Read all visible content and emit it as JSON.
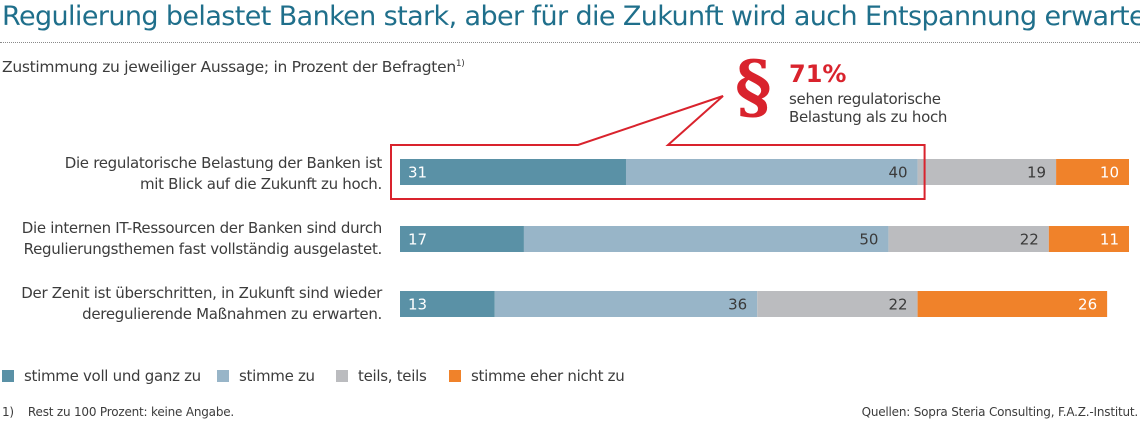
{
  "chart_data": {
    "type": "bar",
    "orientation": "horizontal",
    "stacked": true,
    "title": "Regulierung belastet Banken stark, aber für die Zukunft wird auch Entspannung erwartet",
    "subtitle": "Zustimmung zu jeweiliger Aussage; in Prozent der Befragten",
    "subtitle_footnote_mark": "1)",
    "xlabel": "",
    "ylabel": "",
    "xlim": [
      0,
      100
    ],
    "grid": false,
    "legend_position": "bottom-left",
    "categories": [
      {
        "line1": "Die regulatorische Belastung der Banken ist",
        "line2": "mit Blick auf die Zukunft zu hoch."
      },
      {
        "line1": "Die internen IT-Ressourcen der Banken sind durch",
        "line2": "Regulierungsthemen fast vollständig ausgelastet."
      },
      {
        "line1": "Der Zenit ist überschritten, in Zukunft sind wieder",
        "line2": "deregulierende Maßnahmen zu erwarten."
      }
    ],
    "series": [
      {
        "name": "stimme voll und ganz zu",
        "color": "#5a91a6",
        "label_color": "#ffffff",
        "values": [
          31,
          17,
          13
        ]
      },
      {
        "name": "stimme zu",
        "color": "#98b5c8",
        "label_color": "#3a3a3a",
        "values": [
          40,
          50,
          36
        ]
      },
      {
        "name": "teils, teils",
        "color": "#bbbcbf",
        "label_color": "#3a3a3a",
        "values": [
          19,
          22,
          22
        ]
      },
      {
        "name": "stimme eher nicht zu",
        "color": "#f0822a",
        "label_color": "#ffffff",
        "values": [
          10,
          11,
          26
        ]
      }
    ],
    "annotation": {
      "icon": "paragraph-icon",
      "symbol": "§",
      "value": "71%",
      "line1": "sehen regulatorische",
      "line2": "Belastung als zu hoch",
      "highlight_category_index": 0,
      "highlight_series": [
        0,
        1
      ],
      "color": "#d9232d"
    }
  },
  "footnote": {
    "number": "1)",
    "text": "Rest zu 100 Prozent: keine Angabe."
  },
  "source": "Quellen: Sopra Steria Consulting, F.A.Z.-Institut."
}
